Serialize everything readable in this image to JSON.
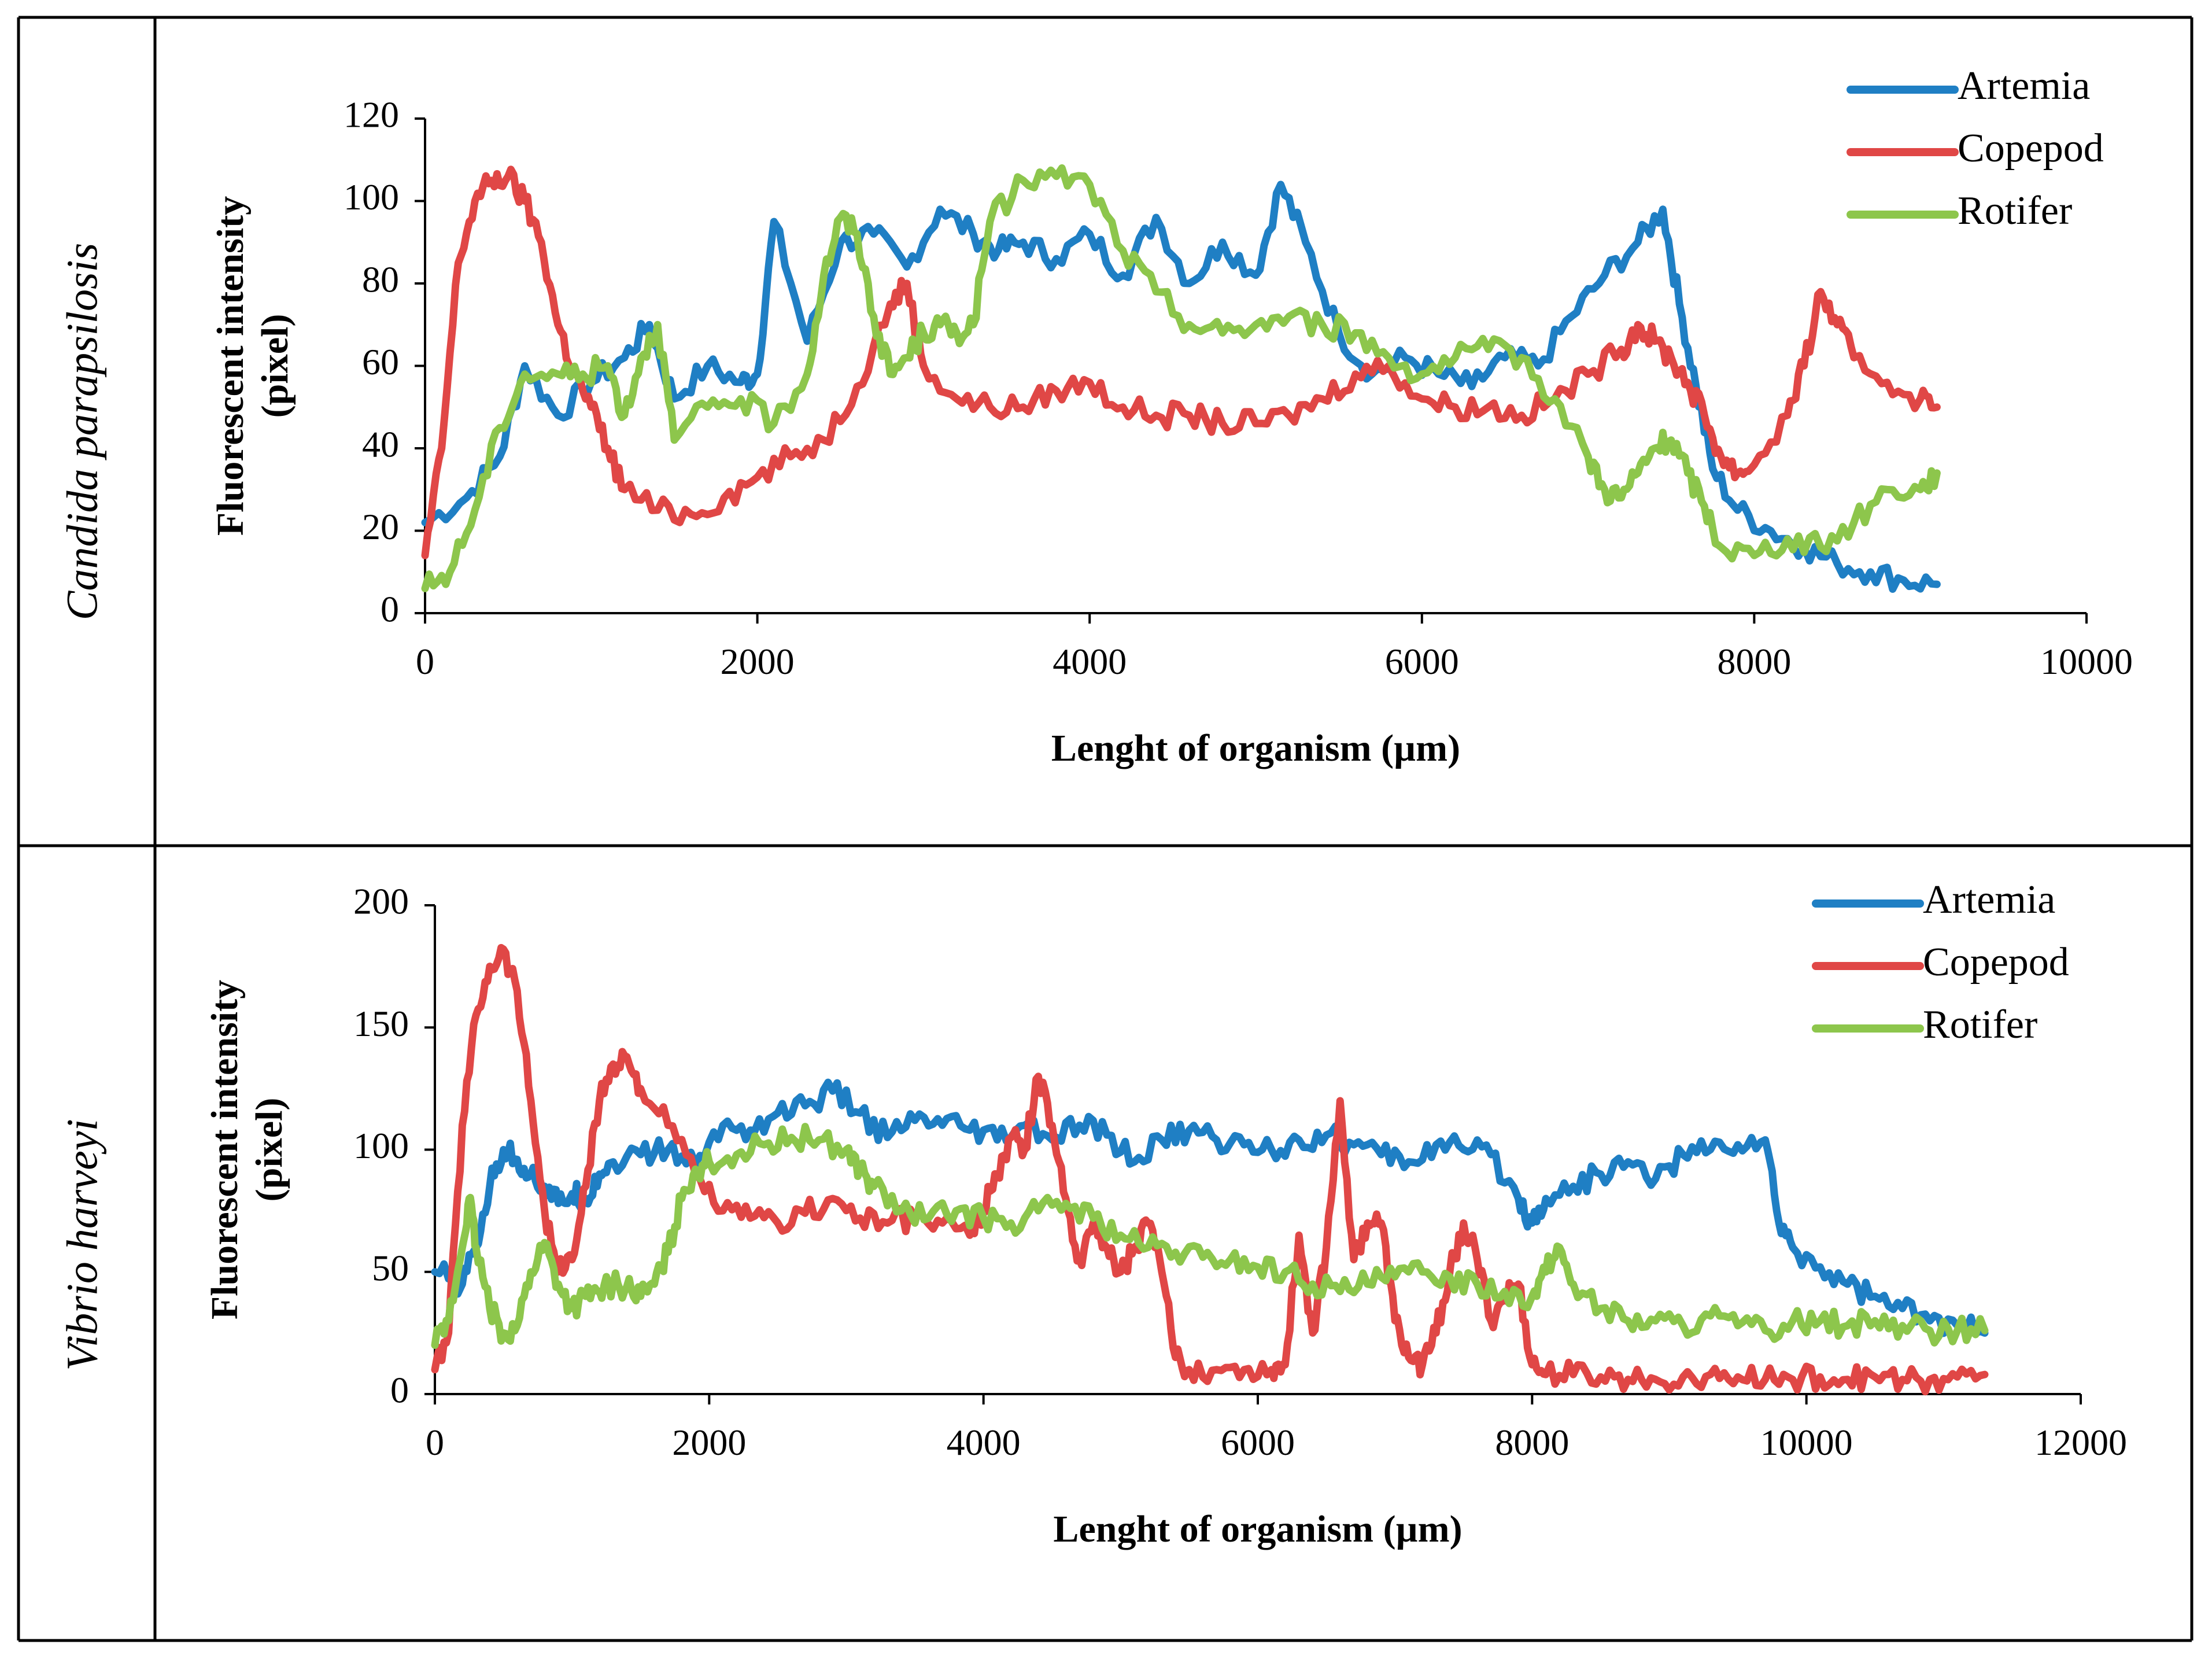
{
  "rows": [
    {
      "label": "Candida parapsilosis"
    },
    {
      "label": "Vibrio harveyi"
    }
  ],
  "chart_data": [
    {
      "type": "line",
      "xlabel": "Lenght of organism (µm)",
      "ylabel": "Fluorescent intensity (pixel)",
      "xlim": [
        0,
        10000
      ],
      "ylim": [
        0,
        120
      ],
      "xticks": [
        "0",
        "2000",
        "4000",
        "6000",
        "8000",
        "10000"
      ],
      "yticks": [
        "0",
        "20",
        "40",
        "60",
        "80",
        "100",
        "120"
      ],
      "legend": {
        "position": "top-right"
      },
      "series": [
        {
          "name": "Artemia",
          "color": "#1f7fc4",
          "x": [
            0,
            250,
            450,
            600,
            800,
            1000,
            1200,
            1350,
            1500,
            1700,
            1900,
            2000,
            2100,
            2300,
            2500,
            2700,
            2900,
            3100,
            3300,
            3450,
            3600,
            3800,
            4000,
            4200,
            4400,
            4600,
            4800,
            5000,
            5150,
            5300,
            5500,
            5700,
            5900,
            6100,
            6300,
            6500,
            6700,
            6900,
            7100,
            7300,
            7450,
            7550,
            7650,
            7750,
            7900,
            8100,
            8300,
            8500,
            8700,
            8900,
            9100
          ],
          "y": [
            22,
            28,
            38,
            60,
            48,
            56,
            62,
            70,
            52,
            60,
            56,
            58,
            95,
            66,
            90,
            92,
            84,
            98,
            92,
            88,
            90,
            86,
            92,
            82,
            96,
            80,
            90,
            82,
            104,
            90,
            68,
            58,
            62,
            58,
            55,
            62,
            60,
            72,
            82,
            90,
            98,
            75,
            55,
            35,
            25,
            20,
            16,
            12,
            10,
            8,
            7
          ]
        },
        {
          "name": "Copepod",
          "color": "#e04746",
          "x": [
            0,
            100,
            200,
            300,
            400,
            500,
            600,
            700,
            800,
            900,
            1000,
            1100,
            1200,
            1400,
            1600,
            1800,
            2000,
            2200,
            2400,
            2600,
            2800,
            2900,
            3000,
            3200,
            3400,
            3600,
            3800,
            4000,
            4200,
            4400,
            4600,
            4800,
            5000,
            5200,
            5400,
            5600,
            5800,
            6000,
            6200,
            6400,
            6600,
            6800,
            7000,
            7200,
            7300,
            7400,
            7500,
            7600,
            7700,
            7800,
            7900,
            8000,
            8200,
            8300,
            8400,
            8500,
            8600,
            8800,
            9000,
            9100
          ],
          "y": [
            14,
            40,
            85,
            100,
            105,
            106,
            100,
            90,
            70,
            58,
            50,
            40,
            30,
            25,
            24,
            28,
            33,
            38,
            42,
            55,
            75,
            80,
            60,
            52,
            50,
            50,
            54,
            56,
            50,
            48,
            48,
            46,
            46,
            48,
            52,
            58,
            60,
            52,
            50,
            50,
            48,
            52,
            58,
            64,
            70,
            66,
            62,
            56,
            48,
            38,
            34,
            36,
            48,
            60,
            78,
            70,
            62,
            56,
            52,
            50
          ]
        },
        {
          "name": "Rotifer",
          "color": "#8dc64c",
          "x": [
            0,
            150,
            300,
            450,
            600,
            800,
            950,
            1100,
            1200,
            1300,
            1400,
            1500,
            1700,
            1900,
            2100,
            2300,
            2400,
            2500,
            2600,
            2700,
            2800,
            2900,
            3000,
            3100,
            3200,
            3300,
            3400,
            3600,
            3800,
            4000,
            4200,
            4400,
            4600,
            4800,
            5000,
            5200,
            5400,
            5600,
            5800,
            6000,
            6200,
            6400,
            6600,
            6800,
            7000,
            7100,
            7200,
            7300,
            7400,
            7500,
            7600,
            7700,
            7800,
            8000,
            8200,
            8400,
            8600,
            8800,
            9000,
            9100
          ],
          "y": [
            6,
            10,
            25,
            45,
            58,
            58,
            58,
            60,
            48,
            62,
            70,
            42,
            50,
            52,
            46,
            58,
            82,
            96,
            92,
            72,
            58,
            62,
            68,
            70,
            68,
            70,
            95,
            105,
            106,
            104,
            88,
            78,
            70,
            68,
            70,
            72,
            70,
            68,
            62,
            58,
            62,
            64,
            62,
            52,
            38,
            30,
            28,
            34,
            40,
            42,
            34,
            26,
            16,
            14,
            18,
            16,
            22,
            30,
            30,
            34
          ]
        }
      ]
    },
    {
      "type": "line",
      "xlabel": "Lenght of organism (µm)",
      "ylabel": "Fluorescent intensity (pixel)",
      "xlim": [
        0,
        12000
      ],
      "ylim": [
        0,
        200
      ],
      "xticks": [
        "0",
        "2000",
        "4000",
        "6000",
        "8000",
        "10000",
        "12000"
      ],
      "yticks": [
        "0",
        "50",
        "100",
        "150",
        "200"
      ],
      "legend": {
        "position": "top-right"
      },
      "series": [
        {
          "name": "Artemia",
          "color": "#1f7fc4",
          "x": [
            0,
            200,
            300,
            400,
            500,
            600,
            700,
            800,
            900,
            1000,
            1100,
            1200,
            1300,
            1500,
            1700,
            1900,
            2100,
            2300,
            2500,
            2700,
            2900,
            3100,
            3300,
            3500,
            3700,
            3900,
            4100,
            4300,
            4500,
            4700,
            4900,
            5100,
            5300,
            5500,
            5700,
            5900,
            6100,
            6300,
            6500,
            6700,
            6900,
            7100,
            7300,
            7500,
            7700,
            7900,
            8000,
            8100,
            8300,
            8500,
            8700,
            8900,
            9100,
            9300,
            9500,
            9700,
            9800,
            9900,
            10100,
            10300,
            10500,
            10700,
            10900,
            11100,
            11300
          ],
          "y": [
            50,
            45,
            60,
            85,
            100,
            96,
            90,
            85,
            78,
            82,
            80,
            90,
            95,
            98,
            100,
            94,
            110,
            108,
            115,
            118,
            124,
            115,
            105,
            112,
            110,
            108,
            104,
            110,
            104,
            110,
            106,
            95,
            104,
            108,
            104,
            102,
            100,
            104,
            106,
            102,
            98,
            95,
            102,
            100,
            98,
            80,
            70,
            80,
            85,
            90,
            95,
            88,
            98,
            100,
            102,
            104,
            70,
            60,
            52,
            45,
            40,
            35,
            30,
            28,
            25
          ]
        },
        {
          "name": "Copepod",
          "color": "#e04746",
          "x": [
            0,
            100,
            200,
            300,
            400,
            500,
            600,
            700,
            800,
            900,
            1000,
            1100,
            1200,
            1300,
            1400,
            1500,
            1700,
            1900,
            2100,
            2300,
            2500,
            2700,
            2900,
            3100,
            3300,
            3500,
            3700,
            3900,
            4000,
            4100,
            4200,
            4300,
            4400,
            4500,
            4600,
            4700,
            4800,
            4900,
            5000,
            5100,
            5200,
            5300,
            5400,
            5500,
            5700,
            5900,
            6100,
            6200,
            6300,
            6400,
            6500,
            6600,
            6700,
            6800,
            6900,
            7000,
            7100,
            7200,
            7300,
            7400,
            7500,
            7600,
            7700,
            7800,
            7900,
            8000,
            8100,
            8300,
            8500,
            8700,
            8900,
            9100,
            9300,
            9500,
            9700,
            9900,
            10100,
            10300,
            10500,
            10700,
            10900,
            11100,
            11300
          ],
          "y": [
            10,
            25,
            110,
            155,
            175,
            182,
            165,
            120,
            75,
            50,
            55,
            85,
            120,
            135,
            138,
            125,
            110,
            90,
            75,
            72,
            70,
            74,
            80,
            72,
            70,
            72,
            70,
            65,
            75,
            90,
            105,
            100,
            130,
            110,
            80,
            55,
            70,
            60,
            50,
            60,
            70,
            50,
            15,
            10,
            10,
            10,
            10,
            12,
            65,
            25,
            60,
            120,
            55,
            70,
            70,
            30,
            15,
            12,
            25,
            50,
            70,
            55,
            30,
            40,
            45,
            12,
            8,
            8,
            7,
            6,
            6,
            7,
            8,
            7,
            6,
            6,
            7,
            6,
            7,
            6,
            6,
            7,
            8
          ]
        },
        {
          "name": "Rotifer",
          "color": "#8dc64c",
          "x": [
            0,
            100,
            200,
            250,
            300,
            400,
            500,
            600,
            700,
            800,
            900,
            1000,
            1100,
            1200,
            1300,
            1400,
            1500,
            1600,
            1700,
            1800,
            1900,
            2000,
            2200,
            2400,
            2600,
            2800,
            3000,
            3100,
            3200,
            3400,
            3600,
            3800,
            4000,
            4200,
            4400,
            4600,
            4800,
            5000,
            5200,
            5400,
            5600,
            5800,
            6000,
            6200,
            6400,
            6600,
            6800,
            7000,
            7200,
            7400,
            7600,
            7800,
            8000,
            8100,
            8200,
            8300,
            8500,
            8700,
            8900,
            9100,
            9300,
            9500,
            9700,
            9900,
            10100,
            10300,
            10500,
            10700,
            10900,
            11100,
            11300
          ],
          "y": [
            20,
            30,
            60,
            80,
            60,
            35,
            25,
            28,
            50,
            62,
            45,
            35,
            40,
            42,
            45,
            44,
            40,
            45,
            58,
            80,
            92,
            95,
            98,
            102,
            105,
            104,
            100,
            92,
            85,
            75,
            72,
            75,
            72,
            70,
            75,
            78,
            72,
            65,
            60,
            58,
            56,
            55,
            52,
            50,
            45,
            42,
            45,
            48,
            50,
            48,
            45,
            42,
            40,
            50,
            60,
            45,
            35,
            30,
            30,
            28,
            32,
            28,
            26,
            30,
            30,
            28,
            30,
            28,
            26,
            26,
            26
          ]
        }
      ]
    }
  ]
}
